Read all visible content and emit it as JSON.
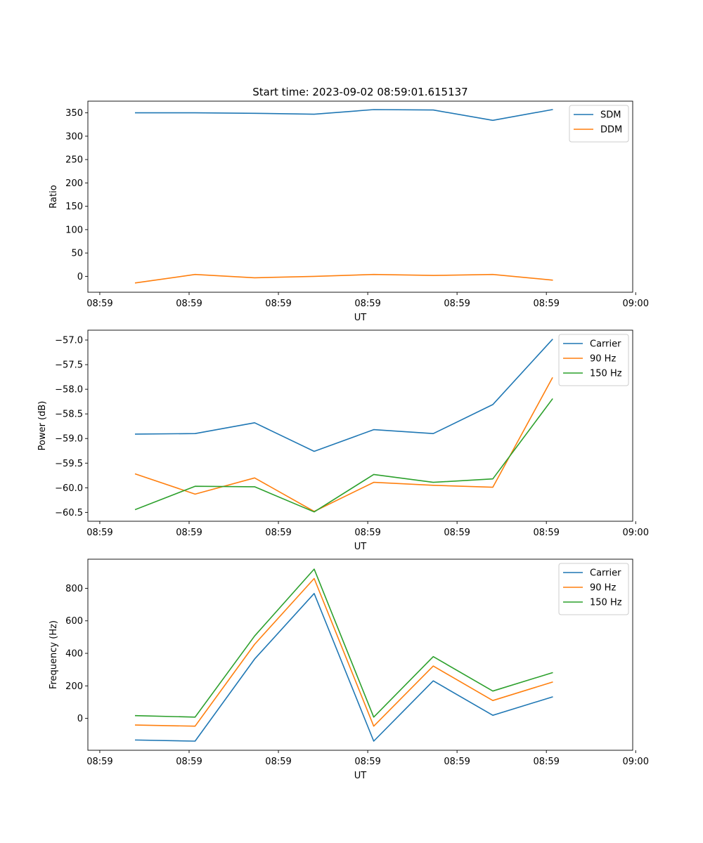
{
  "title": "Start time: 2023-09-02 08:59:01.615137",
  "colors": {
    "c0": "#1f77b4",
    "c1": "#ff7f0e",
    "c2": "#2ca02c"
  },
  "chart_data": [
    {
      "type": "line",
      "title": "Start time: 2023-09-02 08:59:01.615137",
      "xlabel": "UT",
      "ylabel": "Ratio",
      "x": [
        1,
        2,
        3,
        4,
        5,
        6,
        7,
        8
      ],
      "xlim": [
        0.2,
        9.35
      ],
      "ylim": [
        -34,
        375
      ],
      "xticks": [
        0.4,
        1.9,
        3.4,
        4.9,
        6.4,
        7.9,
        9.4
      ],
      "xtick_labels": [
        "08:59",
        "08:59",
        "08:59",
        "08:59",
        "08:59",
        "08:59",
        "09:00"
      ],
      "yticks": [
        0,
        50,
        100,
        150,
        200,
        250,
        300,
        350
      ],
      "ytick_labels": [
        "0",
        "50",
        "100",
        "150",
        "200",
        "250",
        "300",
        "350"
      ],
      "legend_position": "top-right",
      "series": [
        {
          "name": "SDM",
          "color": "#1f77b4",
          "values": [
            350,
            350,
            349,
            347,
            357,
            356,
            334,
            357
          ]
        },
        {
          "name": "DDM",
          "color": "#ff7f0e",
          "values": [
            -14,
            4,
            -3,
            0,
            4,
            2,
            4,
            -8
          ]
        }
      ]
    },
    {
      "type": "line",
      "xlabel": "UT",
      "ylabel": "Power (dB)",
      "x": [
        1,
        2,
        3,
        4,
        5,
        6,
        7,
        8
      ],
      "xlim": [
        0.2,
        9.35
      ],
      "ylim": [
        -60.68,
        -56.8
      ],
      "xticks": [
        0.4,
        1.9,
        3.4,
        4.9,
        6.4,
        7.9,
        9.4
      ],
      "xtick_labels": [
        "08:59",
        "08:59",
        "08:59",
        "08:59",
        "08:59",
        "08:59",
        "09:00"
      ],
      "yticks": [
        -60.5,
        -60.0,
        -59.5,
        -59.0,
        -58.5,
        -58.0,
        -57.5,
        -57.0
      ],
      "ytick_labels": [
        "−60.5",
        "−60.0",
        "−59.5",
        "−59.0",
        "−58.5",
        "−58.0",
        "−57.5",
        "−57.0"
      ],
      "legend_position": "top-right",
      "series": [
        {
          "name": "Carrier",
          "color": "#1f77b4",
          "values": [
            -58.91,
            -58.9,
            -58.68,
            -59.26,
            -58.82,
            -58.9,
            -58.31,
            -56.99
          ]
        },
        {
          "name": "90 Hz",
          "color": "#ff7f0e",
          "values": [
            -59.72,
            -60.13,
            -59.8,
            -60.48,
            -59.89,
            -59.95,
            -59.99,
            -57.77
          ]
        },
        {
          "name": "150 Hz",
          "color": "#2ca02c",
          "values": [
            -60.44,
            -59.97,
            -59.98,
            -60.49,
            -59.73,
            -59.89,
            -59.82,
            -58.2
          ]
        }
      ]
    },
    {
      "type": "line",
      "xlabel": "UT",
      "ylabel": "Frequency (Hz)",
      "x": [
        1,
        2,
        3,
        4,
        5,
        6,
        7,
        8
      ],
      "xlim": [
        0.2,
        9.35
      ],
      "ylim": [
        -196,
        979
      ],
      "xticks": [
        0.4,
        1.9,
        3.4,
        4.9,
        6.4,
        7.9,
        9.4
      ],
      "xtick_labels": [
        "08:59",
        "08:59",
        "08:59",
        "08:59",
        "08:59",
        "08:59",
        "09:00"
      ],
      "yticks": [
        0,
        200,
        400,
        600,
        800
      ],
      "ytick_labels": [
        "0",
        "200",
        "400",
        "600",
        "800"
      ],
      "legend_position": "top-right",
      "series": [
        {
          "name": "Carrier",
          "color": "#1f77b4",
          "values": [
            -133,
            -140,
            365,
            768,
            -140,
            231,
            19,
            132
          ]
        },
        {
          "name": "90 Hz",
          "color": "#ff7f0e",
          "values": [
            -41,
            -48,
            456,
            860,
            -48,
            322,
            110,
            223
          ]
        },
        {
          "name": "150 Hz",
          "color": "#2ca02c",
          "values": [
            17,
            8,
            507,
            918,
            8,
            380,
            168,
            281
          ]
        }
      ]
    }
  ]
}
